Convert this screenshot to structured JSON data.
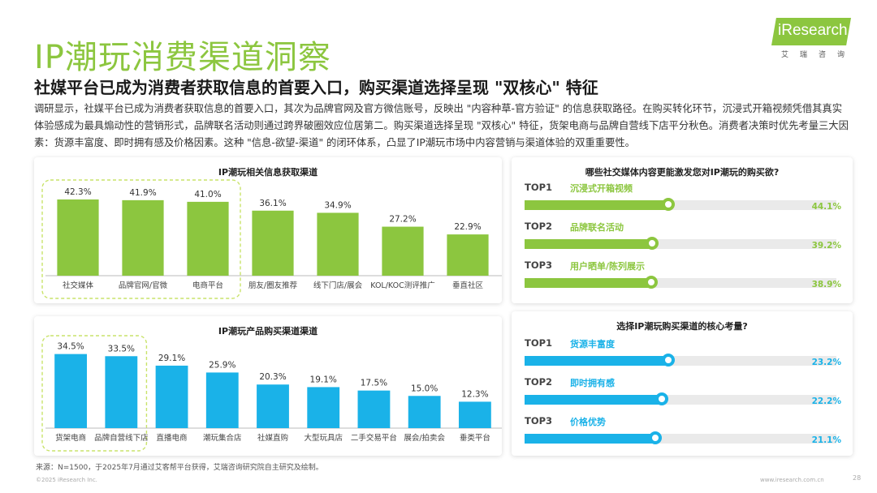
{
  "header": {
    "title": "IP潮玩消费渠道洞察",
    "subtitle": "社媒平台已成为消费者获取信息的首要入口，购买渠道选择呈现 \"双核心\" 特征",
    "body": "调研显示，社媒平台已成为消费者获取信息的首要入口，其次为品牌官网及官方微信账号，反映出 \"内容种草-官方验证\" 的信息获取路径。在购买转化环节，沉浸式开箱视频凭借其真实体验感成为最具煽动性的营销形式，品牌联名活动则通过跨界破圈效应位居第二。购买渠道选择呈现 \"双核心\" 特征，货架电商与品牌自营线下店平分秋色。消费者决策时优先考量三大因素：货源丰富度、即时拥有感及价格因素。这种 \"信息-欲望-渠道\" 的闭环体系，凸显了IP潮玩市场中内容营销与渠道体验的双重重要性。"
  },
  "logo": {
    "brand": "iResearch",
    "cn": "艾瑞咨询"
  },
  "colors": {
    "green": "#8cc63f",
    "blue": "#1ab2e8"
  },
  "chart_data": [
    {
      "type": "bar",
      "title": "IP潮玩相关信息获取渠道",
      "categories": [
        "社交媒体",
        "品牌官网/官微",
        "电商平台",
        "朋友/圈友推荐",
        "线下门店/展会",
        "KOL/KOC测评推广",
        "垂直社区"
      ],
      "values": [
        42.3,
        41.9,
        41.0,
        36.1,
        34.9,
        27.2,
        22.9
      ],
      "labels": [
        "42.3%",
        "41.9%",
        "41.0%",
        "36.1%",
        "34.9%",
        "27.2%",
        "22.9%"
      ],
      "ylim": [
        0,
        45
      ],
      "highlight_count": 3
    },
    {
      "type": "bar",
      "title": "IP潮玩产品购买渠道渠道",
      "categories": [
        "货架电商",
        "品牌自营线下店",
        "直播电商",
        "潮玩集合店",
        "社媒直购",
        "大型玩具店",
        "二手交易平台",
        "展会/拍卖会",
        "垂类平台"
      ],
      "values": [
        34.5,
        33.5,
        29.1,
        25.9,
        20.3,
        19.1,
        17.5,
        15.0,
        12.3
      ],
      "labels": [
        "34.5%",
        "33.5%",
        "29.1%",
        "25.9%",
        "20.3%",
        "19.1%",
        "17.5%",
        "15.0%",
        "12.3%"
      ],
      "ylim": [
        0,
        37
      ],
      "highlight_count": 2
    },
    {
      "type": "bar",
      "title": "哪些社交媒体内容更能激发您对IP潮玩的购买欲?",
      "categories": [
        "沉浸式开箱视频",
        "品牌联名活动",
        "用户晒单/陈列展示"
      ],
      "ranks": [
        "TOP1",
        "TOP2",
        "TOP3"
      ],
      "values": [
        44.1,
        39.2,
        38.9
      ],
      "labels": [
        "44.1%",
        "39.2%",
        "38.9%"
      ]
    },
    {
      "type": "bar",
      "title": "选择IP潮玩购买渠道的核心考量?",
      "categories": [
        "货源丰富度",
        "即时拥有感",
        "价格优势"
      ],
      "ranks": [
        "TOP1",
        "TOP2",
        "TOP3"
      ],
      "values": [
        23.2,
        22.2,
        21.1
      ],
      "labels": [
        "23.2%",
        "22.2%",
        "21.1%"
      ]
    }
  ],
  "footer": {
    "source": "来源：N=1500，于2025年7月通过艾客帮平台获得，艾瑞咨询研究院自主研究及绘制。",
    "copyright": "©2025 iResearch Inc.",
    "url": "www.iresearch.com.cn",
    "page": "28"
  }
}
